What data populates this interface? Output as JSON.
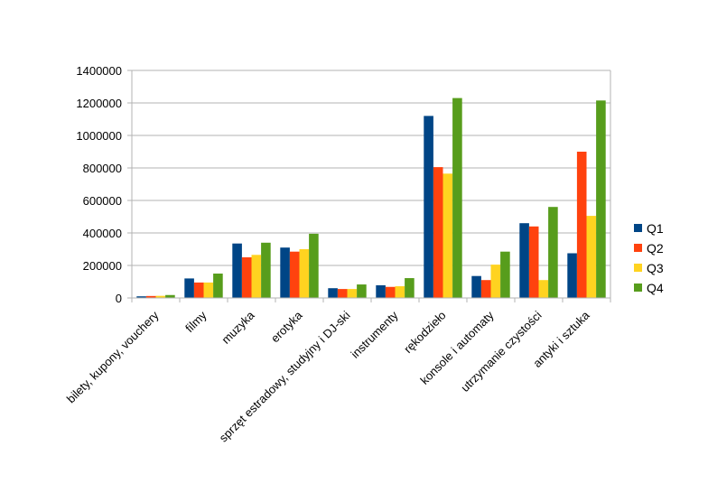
{
  "chart_data": {
    "type": "bar",
    "categories": [
      "bilety, kupony, vouchery",
      "filmy",
      "muzyka",
      "erotyka",
      "sprzęt estradowy, studyjny i DJ-ski",
      "instrumenty",
      "rękodzieło",
      "konsole i automaty",
      "utrzymanie czystości",
      "antyki i sztuka"
    ],
    "series": [
      {
        "name": "Q1",
        "color": "#004586",
        "values": [
          10000,
          120000,
          335000,
          310000,
          60000,
          78000,
          1120000,
          135000,
          460000,
          275000
        ]
      },
      {
        "name": "Q2",
        "color": "#ff420e",
        "values": [
          12000,
          95000,
          250000,
          285000,
          55000,
          68000,
          805000,
          110000,
          440000,
          900000
        ]
      },
      {
        "name": "Q3",
        "color": "#ffd320",
        "values": [
          13000,
          95000,
          265000,
          300000,
          55000,
          72000,
          765000,
          205000,
          110000,
          505000
        ]
      },
      {
        "name": "Q4",
        "color": "#579d1c",
        "values": [
          18000,
          150000,
          340000,
          395000,
          83000,
          122000,
          1230000,
          285000,
          560000,
          1215000
        ]
      }
    ],
    "ylim": [
      0,
      1400000
    ],
    "yticks": [
      "0",
      "200000",
      "400000",
      "600000",
      "800000",
      "1000000",
      "1200000",
      "1400000"
    ],
    "grid": true,
    "legend": "right",
    "title": "",
    "xlabel": "",
    "ylabel": ""
  }
}
